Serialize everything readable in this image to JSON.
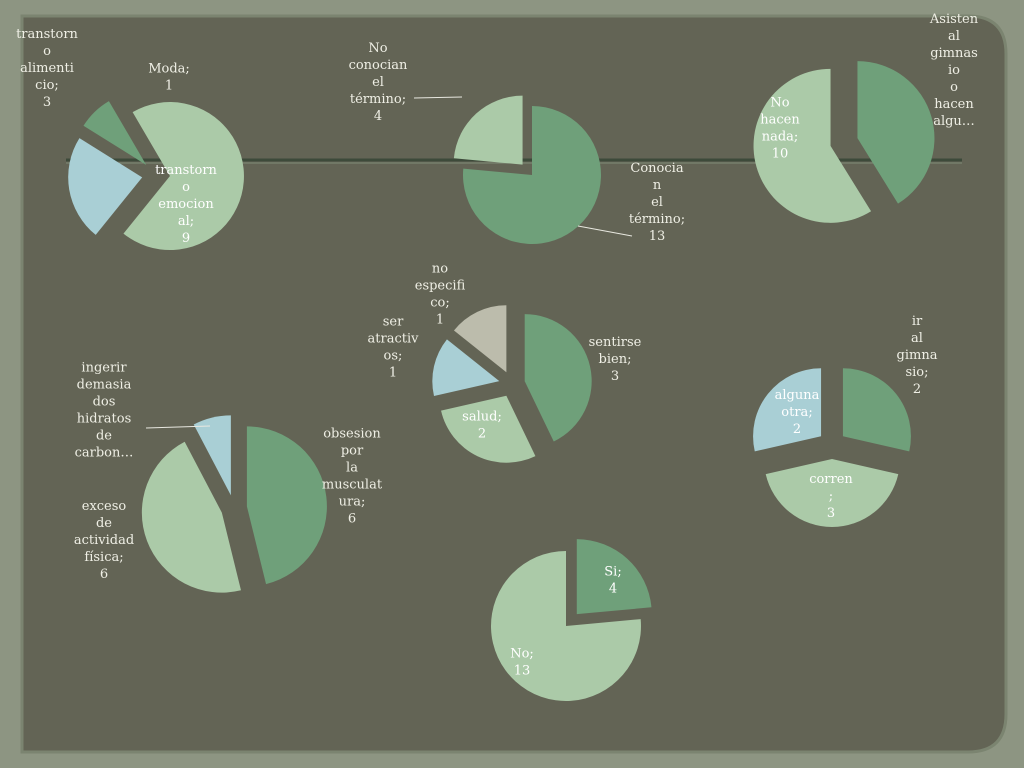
{
  "colors": {
    "background": "#8d9582",
    "panel": "#636455",
    "panel_border": "#7b8470",
    "divider": "#3d4a3a",
    "green": "#6fa07a",
    "pale_green": "#abcaa8",
    "light_blue": "#a9cfd5",
    "gray": "#bcbcac",
    "label_dark": "#efefe5",
    "label_on_slice": "#ffffff",
    "leader": "#e8e8e0"
  },
  "chart_data": [
    {
      "type": "pie",
      "slices": [
        {
          "label": "Moda; 1",
          "value": 1,
          "color": "green",
          "exploded": true
        },
        {
          "label": "transtorn o emocion al; 9",
          "value": 9,
          "color": "pale_green",
          "exploded": true
        },
        {
          "label": "transtorn o alimenti cio; 3",
          "value": 3,
          "color": "light_blue",
          "exploded": true
        }
      ]
    },
    {
      "type": "pie",
      "slices": [
        {
          "label": "Conocia n el término; 13",
          "value": 13,
          "color": "green",
          "exploded": false
        },
        {
          "label": "No conocian el término; 4",
          "value": 4,
          "color": "pale_green",
          "exploded": true
        }
      ]
    },
    {
      "type": "pie",
      "slices": [
        {
          "label": "Asisten al gimnas io o hacen algu…",
          "value": 7,
          "color": "green",
          "exploded": true
        },
        {
          "label": "No hacen nada; 10",
          "value": 10,
          "color": "pale_green",
          "exploded": true
        }
      ]
    },
    {
      "type": "pie",
      "slices": [
        {
          "label": "sentirse bien; 3",
          "value": 3,
          "color": "green",
          "exploded": true
        },
        {
          "label": "salud; 2",
          "value": 2,
          "color": "pale_green",
          "exploded": true
        },
        {
          "label": "ser atractiv os; 1",
          "value": 1,
          "color": "light_blue",
          "exploded": true
        },
        {
          "label": "no especifi co; 1",
          "value": 1,
          "color": "gray",
          "exploded": true
        }
      ]
    },
    {
      "type": "pie",
      "slices": [
        {
          "label": "ir al gimna sio; 2",
          "value": 2,
          "color": "green",
          "exploded": true
        },
        {
          "label": "corren ; 3",
          "value": 3,
          "color": "pale_green",
          "exploded": true
        },
        {
          "label": "alguna otra; 2",
          "value": 2,
          "color": "light_blue",
          "exploded": true
        }
      ]
    },
    {
      "type": "pie",
      "slices": [
        {
          "label": "obsesion por la musculat ura; 6",
          "value": 6,
          "color": "green",
          "exploded": true
        },
        {
          "label": "exceso de actividad física; 6",
          "value": 6,
          "color": "pale_green",
          "exploded": true
        },
        {
          "label": "ingerir demasia dos hidratos de carbon…",
          "value": 1,
          "color": "light_blue",
          "exploded": true
        }
      ]
    },
    {
      "type": "pie",
      "slices": [
        {
          "label": "Si; 4",
          "value": 4,
          "color": "green",
          "exploded": true
        },
        {
          "label": "No; 13",
          "value": 13,
          "color": "pale_green",
          "exploded": false
        }
      ]
    }
  ]
}
